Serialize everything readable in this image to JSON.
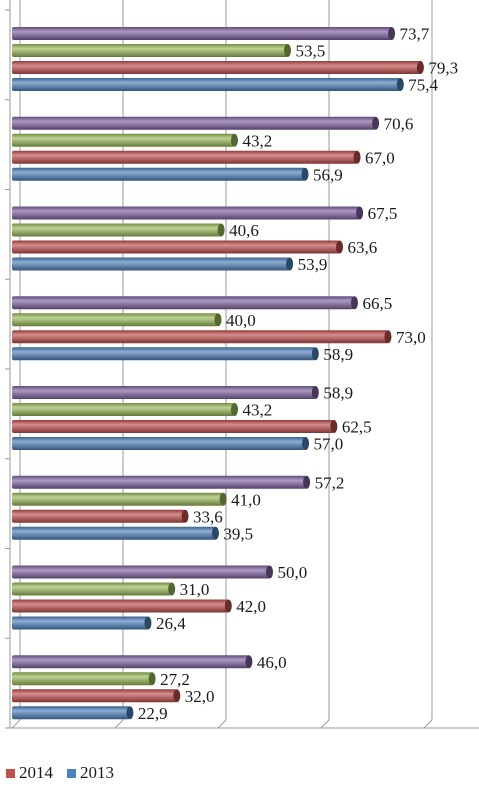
{
  "chart_data": {
    "type": "bar",
    "orientation": "horizontal",
    "style": "3d-cylinder",
    "groups": 8,
    "series": [
      {
        "name": "",
        "color": "#8064a2",
        "values": [
          73.7,
          70.6,
          67.5,
          66.5,
          58.9,
          57.2,
          50.0,
          46.0
        ],
        "labels": [
          "73,7",
          "70,6",
          "67,5",
          "66,5",
          "58,9",
          "57,2",
          "50,0",
          "46,0"
        ]
      },
      {
        "name": "",
        "color": "#9bbb59",
        "values": [
          53.5,
          43.2,
          40.6,
          40.0,
          43.2,
          41.0,
          31.0,
          27.2
        ],
        "labels": [
          "53,5",
          "43,2",
          "40,6",
          "40,0",
          "43,2",
          "41,0",
          "31,0",
          "27,2"
        ]
      },
      {
        "name": "2014",
        "color": "#c0504d",
        "values": [
          79.3,
          67.0,
          63.6,
          73.0,
          62.5,
          33.6,
          42.0,
          32.0
        ],
        "labels": [
          "79,3",
          "67,0",
          "63,6",
          "73,0",
          "62,5",
          "33,6",
          "42,0",
          "32,0"
        ]
      },
      {
        "name": "2013",
        "color": "#4f81bd",
        "values": [
          75.4,
          56.9,
          53.9,
          58.9,
          57.0,
          39.5,
          26.4,
          22.9
        ],
        "labels": [
          "75,4",
          "56,9",
          "53,9",
          "58,9",
          "57,0",
          "39,5",
          "26,4",
          "22,9"
        ]
      }
    ],
    "xlim": [
      0,
      100
    ],
    "grid": true,
    "legend": {
      "position": "bottom-left",
      "entries": [
        "2014",
        "2013"
      ]
    }
  },
  "legend": {
    "items": [
      {
        "label": "2014",
        "color": "#c0504d"
      },
      {
        "label": "2013",
        "color": "#4f81bd"
      }
    ]
  }
}
